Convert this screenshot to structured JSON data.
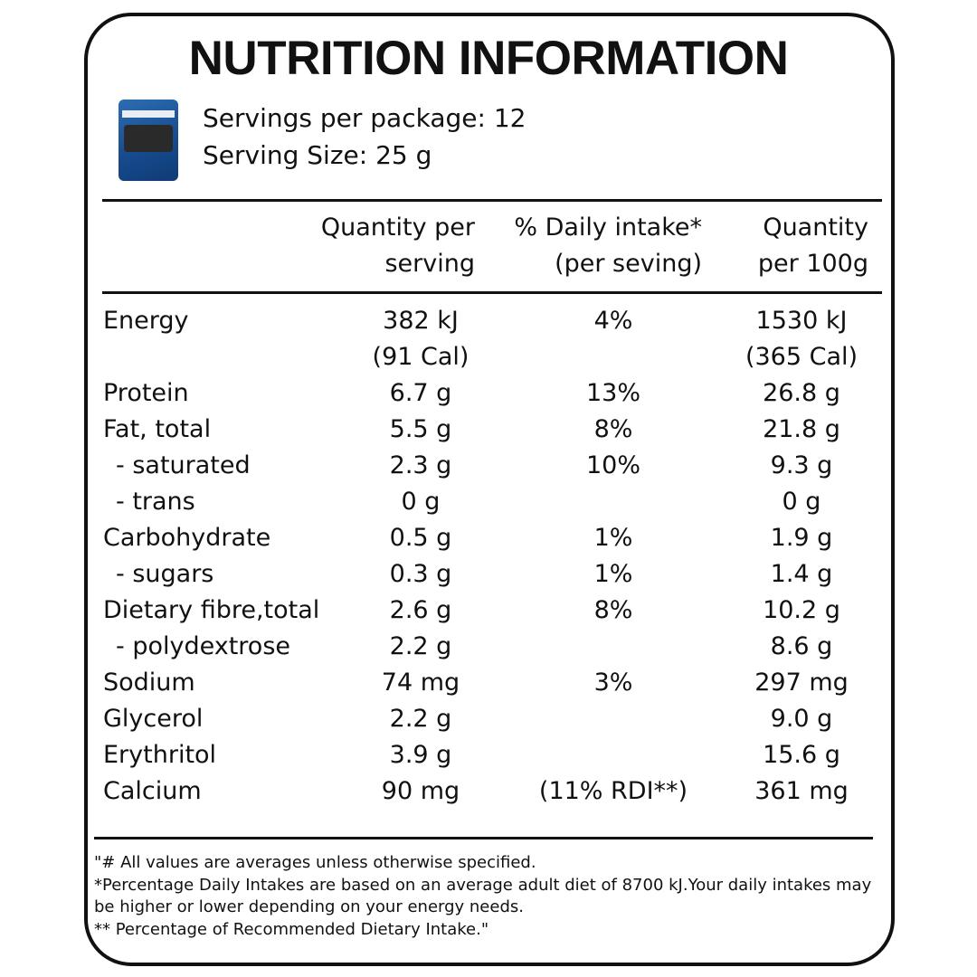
{
  "header": {
    "title": "NUTRITION INFORMATION",
    "servings": [
      "Servings per package: 12",
      "Serving Size: 25 g"
    ]
  },
  "table": {
    "columns": [
      [
        "Quantity per",
        "serving"
      ],
      [
        "% Daily  intake*",
        "(per seving)"
      ],
      [
        "Quantity",
        "per 100g"
      ]
    ],
    "rows": [
      {
        "name": "Energy",
        "per_serving": [
          "382 kJ",
          "(91 Cal)"
        ],
        "daily": "4%",
        "per_100g": [
          "1530 kJ",
          "(365 Cal)"
        ]
      },
      {
        "name": "Protein",
        "per_serving": [
          "6.7 g"
        ],
        "daily": "13%",
        "per_100g": [
          "26.8 g"
        ]
      },
      {
        "name": "Fat, total",
        "per_serving": [
          "5.5 g"
        ],
        "daily": "8%",
        "per_100g": [
          "21.8 g"
        ]
      },
      {
        "name": "- saturated",
        "per_serving": [
          "2.3 g"
        ],
        "daily": "10%",
        "per_100g": [
          "9.3 g"
        ]
      },
      {
        "name": "- trans",
        "per_serving": [
          "0 g"
        ],
        "per_100g": [
          "0 g"
        ]
      },
      {
        "name": "Carbohydrate",
        "per_serving": [
          "0.5 g"
        ],
        "daily": "1%",
        "per_100g": [
          "1.9 g"
        ]
      },
      {
        "name": "- sugars",
        "per_serving": [
          "0.3 g"
        ],
        "daily": "1%",
        "per_100g": [
          "1.4 g"
        ]
      },
      {
        "name": "Dietary fibre,total",
        "per_serving": [
          "2.6 g"
        ],
        "daily": "8%",
        "per_100g": [
          "10.2 g"
        ]
      },
      {
        "name": "- polydextrose",
        "per_serving": [
          "2.2 g"
        ],
        "per_100g": [
          "8.6 g"
        ]
      },
      {
        "name": "Sodium",
        "per_serving": [
          "74 mg"
        ],
        "daily": "3%",
        "per_100g": [
          "297 mg"
        ]
      },
      {
        "name": "Glycerol",
        "per_serving": [
          "2.2 g"
        ],
        "per_100g": [
          "9.0 g"
        ]
      },
      {
        "name": "Erythritol",
        "per_serving": [
          "3.9 g"
        ],
        "per_100g": [
          "15.6 g"
        ]
      },
      {
        "name": "Calcium",
        "per_serving": [
          "90 mg"
        ],
        "daily": "(11% RDI**)",
        "per_100g": [
          "361 mg"
        ]
      }
    ]
  },
  "footnotes": [
    "\"# All values are averages unless otherwise specified.",
    "*Percentage Daily Intakes are based on an average adult diet of 8700 kJ.Your daily intakes may",
    "be higher or lower depending on your energy needs.",
    "** Percentage of Recommended Dietary Intake.\""
  ]
}
